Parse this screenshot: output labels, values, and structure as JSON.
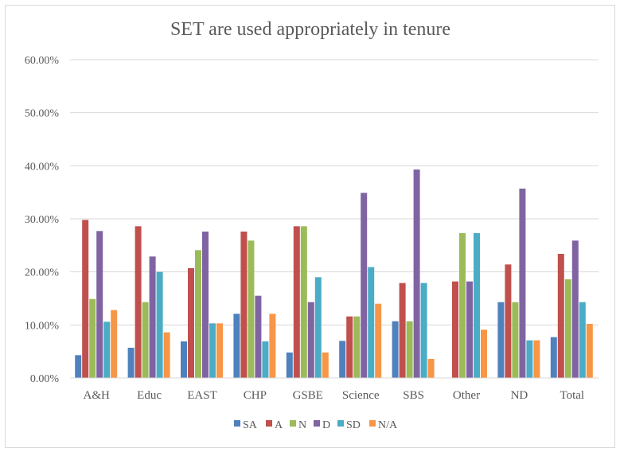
{
  "chart_data": {
    "type": "bar",
    "title": "SET are used appropriately in tenure",
    "xlabel": "",
    "ylabel": "",
    "ylim": [
      0,
      60
    ],
    "yticks": [
      "0.00%",
      "10.00%",
      "20.00%",
      "30.00%",
      "40.00%",
      "50.00%",
      "60.00%"
    ],
    "grid": true,
    "legend_position": "bottom",
    "categories": [
      "A&H",
      "Educ",
      "EAST",
      "CHP",
      "GSBE",
      "Science",
      "SBS",
      "Other",
      "ND",
      "Total"
    ],
    "series": [
      {
        "name": "SA",
        "color": "#4f81bd",
        "values": [
          4.3,
          5.7,
          6.9,
          12.1,
          4.8,
          7.0,
          10.7,
          0,
          14.3,
          7.7
        ]
      },
      {
        "name": "A",
        "color": "#c0504d",
        "values": [
          29.8,
          28.6,
          20.7,
          27.6,
          28.6,
          11.6,
          17.9,
          18.2,
          21.4,
          23.4
        ]
      },
      {
        "name": "N",
        "color": "#9bbb59",
        "values": [
          14.9,
          14.3,
          24.1,
          25.9,
          28.6,
          11.6,
          10.7,
          27.3,
          14.3,
          18.6
        ]
      },
      {
        "name": "D",
        "color": "#8064a2",
        "values": [
          27.7,
          22.9,
          27.6,
          15.5,
          14.3,
          34.9,
          39.3,
          18.2,
          35.7,
          25.9
        ]
      },
      {
        "name": "SD",
        "color": "#4bacc6",
        "values": [
          10.6,
          20.0,
          10.3,
          6.9,
          19.0,
          20.9,
          17.9,
          27.3,
          7.1,
          14.3
        ]
      },
      {
        "name": "N/A",
        "color": "#f79646",
        "values": [
          12.8,
          8.6,
          10.3,
          12.1,
          4.8,
          14.0,
          3.6,
          9.1,
          7.1,
          10.2
        ]
      }
    ]
  }
}
